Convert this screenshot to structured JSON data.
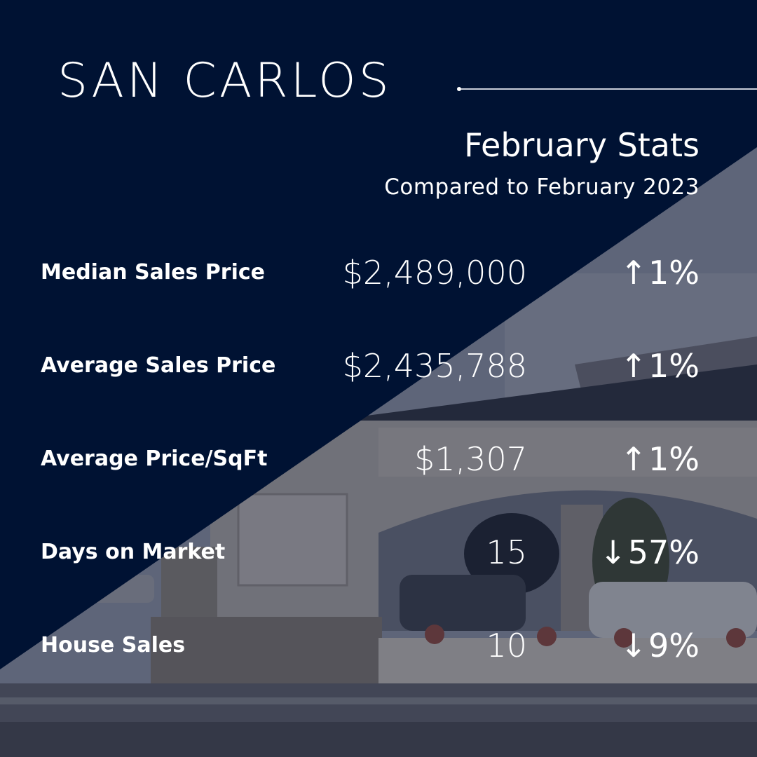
{
  "header": {
    "title": "SAN CARLOS",
    "subtitle": "February Stats",
    "comparison": "Compared to February 2023"
  },
  "stats": [
    {
      "label": "Median Sales Price",
      "value": "$2,489,000",
      "direction": "up",
      "arrow": "↑",
      "change": "1%"
    },
    {
      "label": "Average Sales Price",
      "value": "$2,435,788",
      "direction": "up",
      "arrow": "↑",
      "change": "1%"
    },
    {
      "label": "Average Price/SqFt",
      "value": "$1,307",
      "direction": "up",
      "arrow": "↑",
      "change": "1%"
    },
    {
      "label": "Days on Market",
      "value": "15",
      "direction": "down",
      "arrow": "↓",
      "change": "57%"
    },
    {
      "label": "House Sales",
      "value": "10",
      "direction": "down",
      "arrow": "↓",
      "change": "9%"
    }
  ],
  "colors": {
    "navy": "#001233",
    "text": "#ffffff"
  }
}
